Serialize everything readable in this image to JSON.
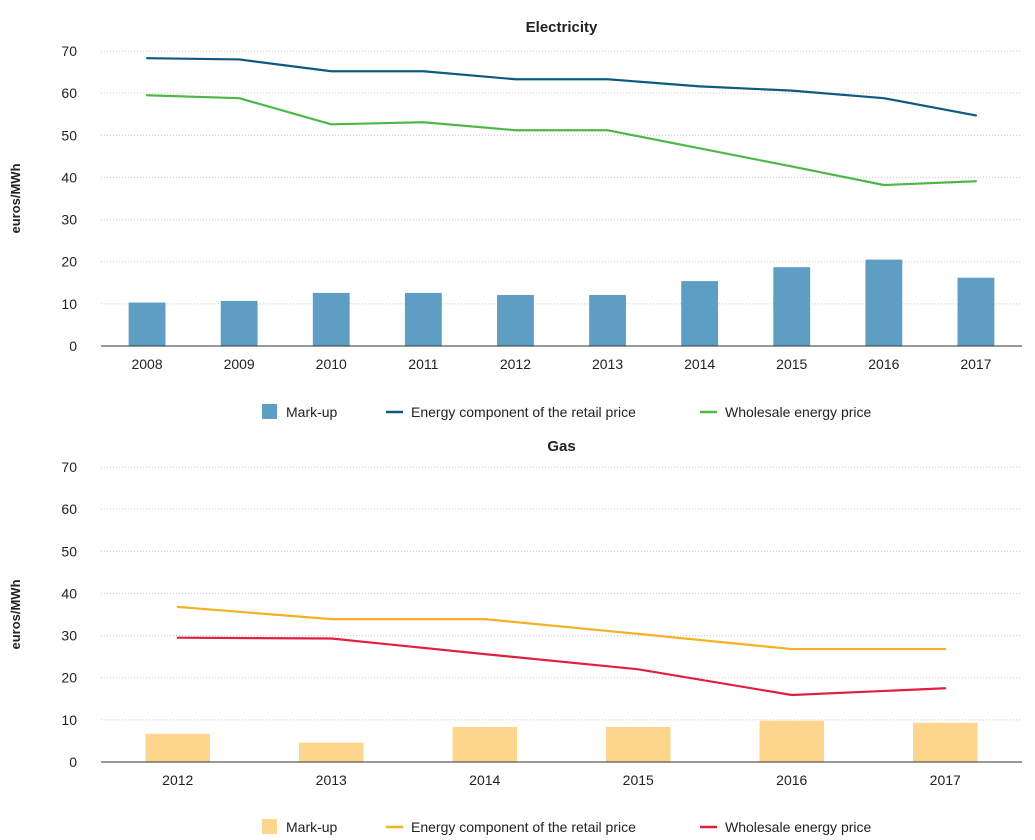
{
  "chart_data": [
    {
      "type": "bar",
      "title": "Electricity",
      "ylabel": "euros/MWh",
      "xlabel": "",
      "ylim": [
        0,
        70
      ],
      "yticks": [
        0,
        10,
        20,
        30,
        40,
        50,
        60,
        70
      ],
      "grid": true,
      "legend_position": "bottom",
      "categories": [
        "2008",
        "2009",
        "2010",
        "2011",
        "2012",
        "2013",
        "2014",
        "2015",
        "2016",
        "2017"
      ],
      "series": [
        {
          "name": "Mark-up",
          "kind": "bar",
          "color": "#5f9ec4",
          "values": [
            10.3,
            10.7,
            12.6,
            12.6,
            12.1,
            12.1,
            15.4,
            18.7,
            20.5,
            16.2
          ]
        },
        {
          "name": "Energy component of the retail price",
          "kind": "line",
          "color": "#0e5a82",
          "values": [
            68.3,
            68.0,
            65.2,
            65.2,
            63.3,
            63.3,
            61.6,
            60.6,
            58.8,
            54.7
          ]
        },
        {
          "name": "Wholesale energy price",
          "kind": "line",
          "color": "#4db848",
          "values": [
            59.5,
            58.8,
            52.6,
            53.1,
            51.2,
            51.2,
            46.9,
            42.6,
            38.2,
            39.1
          ]
        }
      ]
    },
    {
      "type": "bar",
      "title": "Gas",
      "ylabel": "euros/MWh",
      "xlabel": "",
      "ylim": [
        0,
        70
      ],
      "yticks": [
        0,
        10,
        20,
        30,
        40,
        50,
        60,
        70
      ],
      "grid": true,
      "legend_position": "bottom",
      "categories": [
        "2012",
        "2013",
        "2014",
        "2015",
        "2016",
        "2017"
      ],
      "series": [
        {
          "name": "Mark-up",
          "kind": "bar",
          "color": "#fdd58c",
          "values": [
            6.7,
            4.6,
            8.3,
            8.3,
            9.8,
            9.3
          ]
        },
        {
          "name": "Energy component of the retail price",
          "kind": "line",
          "color": "#f5b024",
          "values": [
            36.8,
            33.9,
            33.9,
            30.4,
            26.8,
            26.8
          ]
        },
        {
          "name": "Wholesale energy price",
          "kind": "line",
          "color": "#e0203c",
          "values": [
            29.5,
            29.3,
            25.6,
            22.0,
            15.9,
            17.5
          ]
        }
      ]
    }
  ]
}
